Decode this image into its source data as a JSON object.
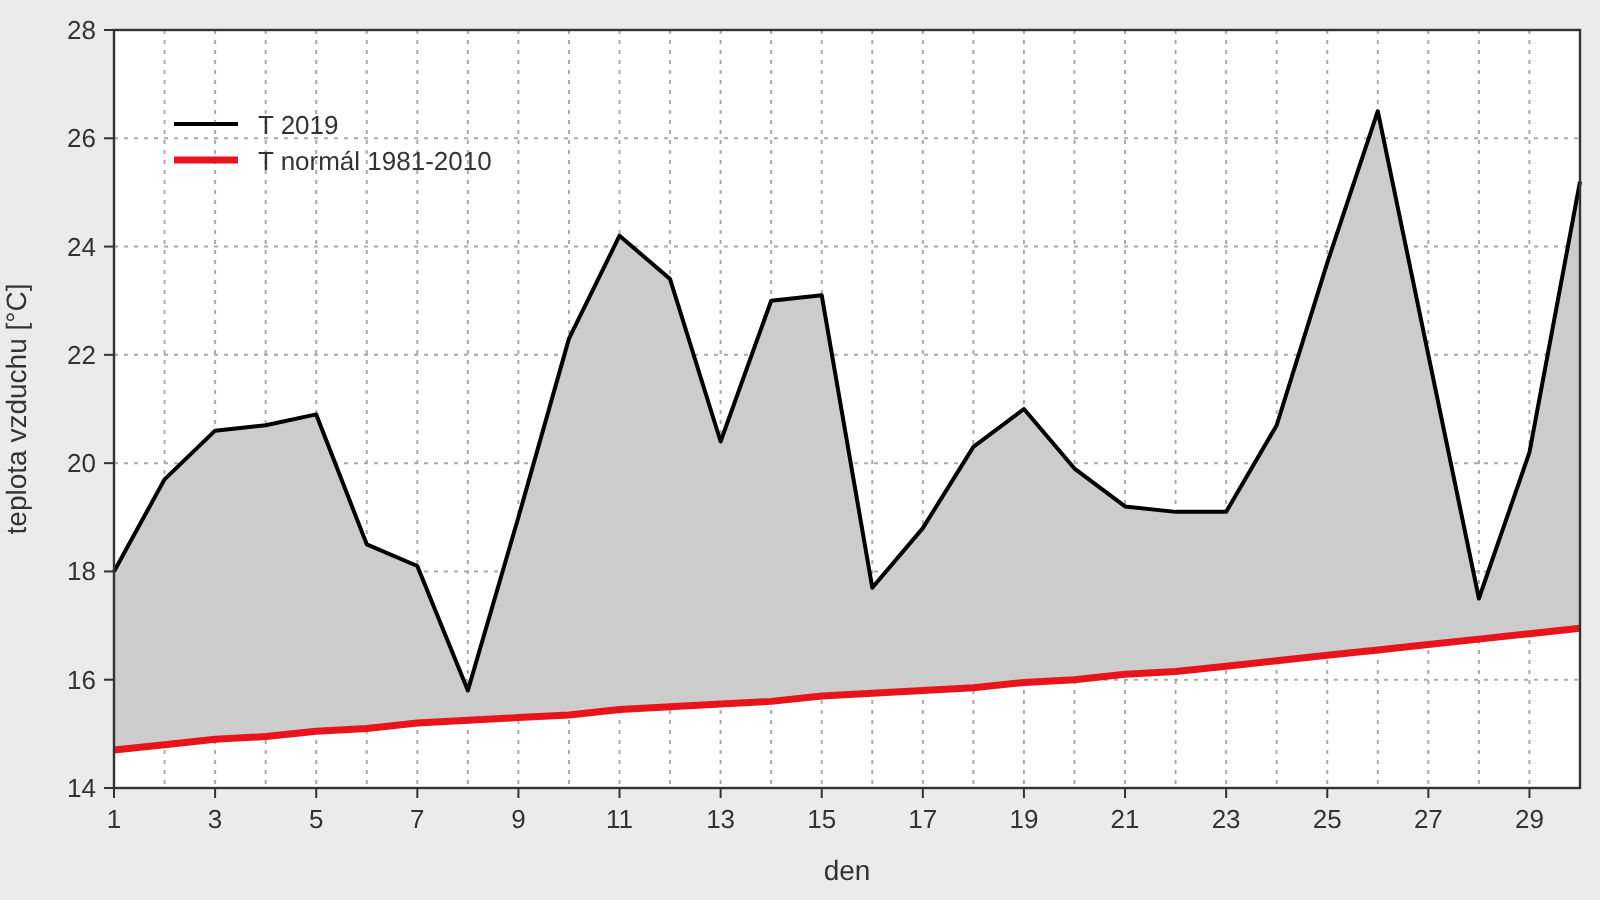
{
  "chart_data": {
    "type": "line",
    "xlabel": "den",
    "ylabel": "teplota vzduchu [°C]",
    "x": [
      1,
      2,
      3,
      4,
      5,
      6,
      7,
      8,
      9,
      10,
      11,
      12,
      13,
      14,
      15,
      16,
      17,
      18,
      19,
      20,
      21,
      22,
      23,
      24,
      25,
      26,
      27,
      28,
      29,
      30
    ],
    "series": [
      {
        "name": "T 2019",
        "type": "area",
        "color": "#000000",
        "values": [
          18.0,
          19.7,
          20.6,
          20.7,
          20.9,
          18.5,
          18.1,
          15.8,
          19.0,
          22.3,
          24.2,
          23.4,
          20.4,
          23.0,
          23.1,
          17.7,
          18.8,
          20.3,
          21.0,
          19.9,
          19.2,
          19.1,
          19.1,
          20.7,
          23.7,
          26.5,
          22.0,
          17.5,
          20.2,
          25.2
        ]
      },
      {
        "name": "T normál 1981-2010",
        "color": "#e8141b",
        "values": [
          14.7,
          14.8,
          14.9,
          14.95,
          15.05,
          15.1,
          15.2,
          15.25,
          15.3,
          15.35,
          15.45,
          15.5,
          15.55,
          15.6,
          15.7,
          15.75,
          15.8,
          15.85,
          15.95,
          16.0,
          16.1,
          16.15,
          16.25,
          16.35,
          16.45,
          16.55,
          16.65,
          16.75,
          16.85,
          16.95
        ]
      }
    ],
    "xlim": [
      1,
      30
    ],
    "ylim": [
      14,
      28
    ],
    "xticks": [
      1,
      {
        "value": 2,
        "label": null
      },
      3,
      {
        "value": 4,
        "label": null
      },
      5,
      {
        "value": 6,
        "label": null
      },
      7,
      {
        "value": 8,
        "label": null
      },
      9,
      {
        "value": 10,
        "label": null
      },
      11,
      {
        "value": 12,
        "label": null
      },
      13,
      {
        "value": 14,
        "label": null
      },
      15,
      {
        "value": 16,
        "label": null
      },
      17,
      {
        "value": 18,
        "label": null
      },
      19,
      {
        "value": 20,
        "label": null
      },
      21,
      {
        "value": 22,
        "label": null
      },
      23,
      {
        "value": 24,
        "label": null
      },
      25,
      {
        "value": 26,
        "label": null
      },
      27,
      {
        "value": 28,
        "label": null
      },
      29,
      {
        "value": 30,
        "label": null
      }
    ],
    "yticks": [
      14,
      16,
      18,
      20,
      22,
      24,
      26,
      28
    ],
    "grid": true,
    "legend": "top left",
    "marker": "none",
    "line_style": "solid"
  }
}
